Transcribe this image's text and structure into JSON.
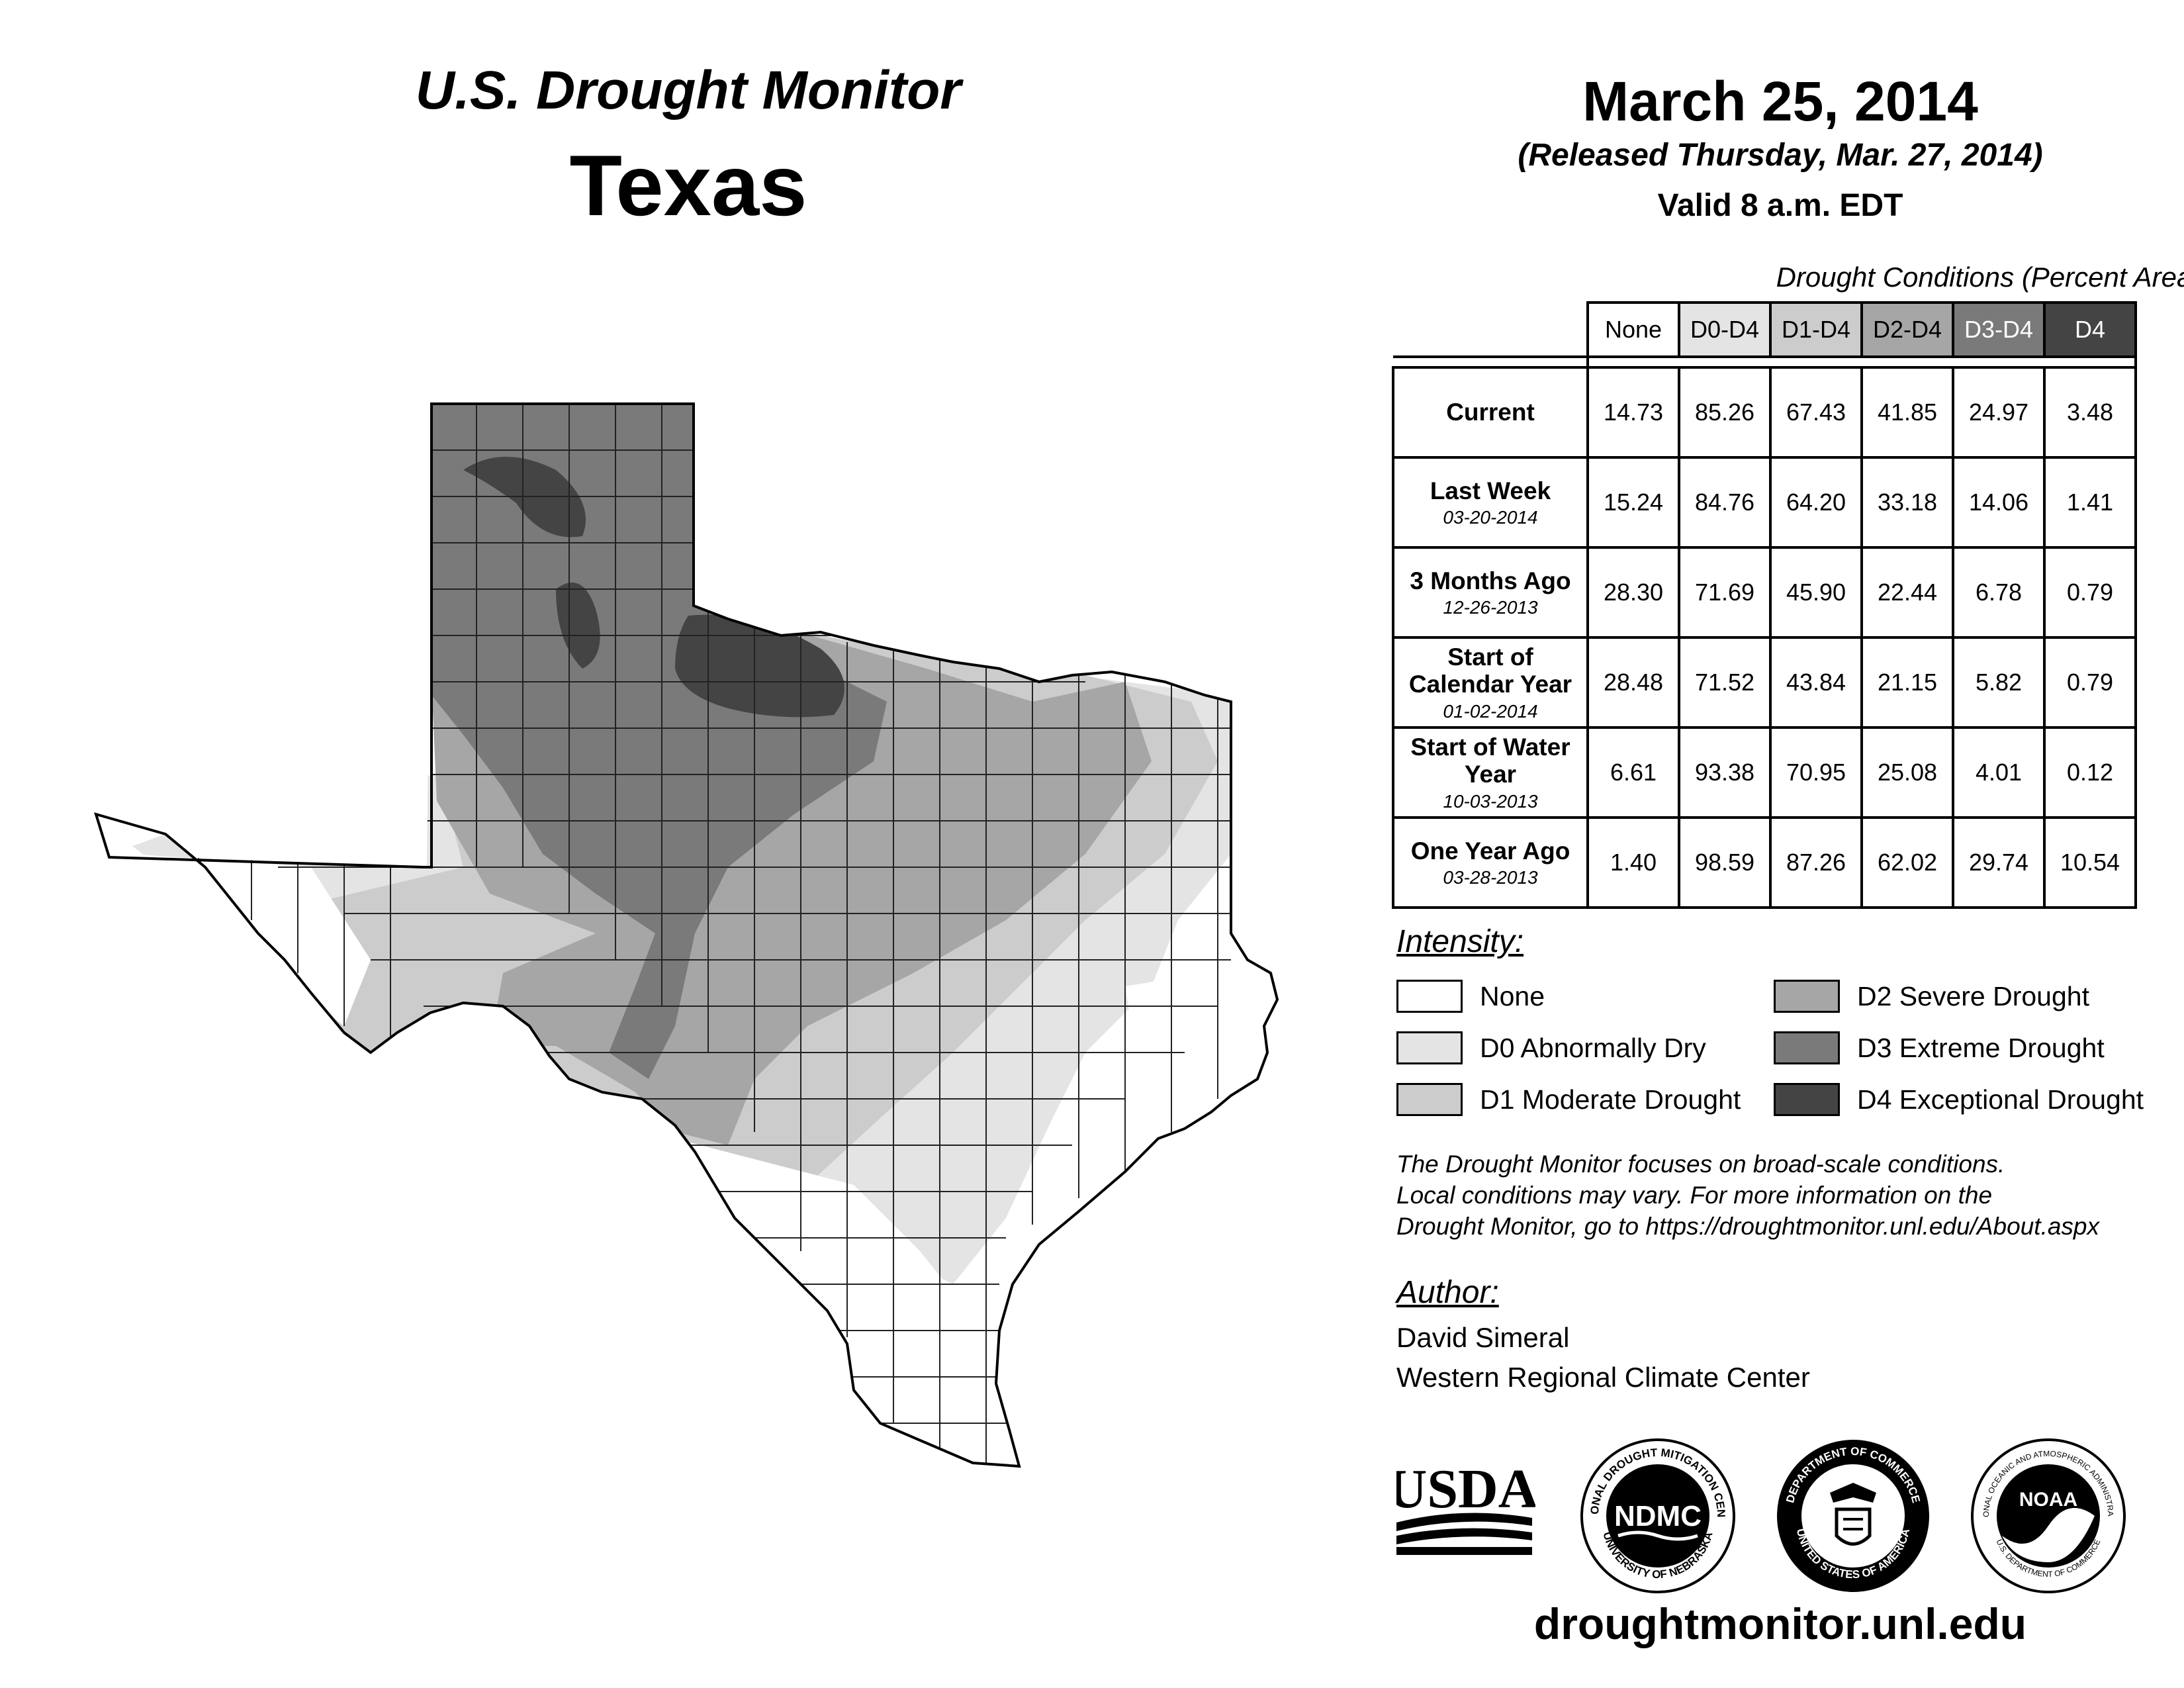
{
  "header": {
    "title": "U.S. Drought Monitor",
    "region": "Texas",
    "date": "March 25, 2014",
    "released": "(Released Thursday, Mar. 27, 2014)",
    "valid": "Valid 8 a.m. EDT"
  },
  "table": {
    "caption": "Drought Conditions (Percent Area)",
    "columns": [
      "None",
      "D0-D4",
      "D1-D4",
      "D2-D4",
      "D3-D4",
      "D4"
    ],
    "header_colors": [
      "#ffffff",
      "#e4e4e4",
      "#cccccc",
      "#a6a6a6",
      "#7a7a7a",
      "#444444"
    ],
    "rows": [
      {
        "label": "Current",
        "date": "",
        "values": [
          "14.73",
          "85.26",
          "67.43",
          "41.85",
          "24.97",
          "3.48"
        ]
      },
      {
        "label": "Last Week",
        "date": "03-20-2014",
        "values": [
          "15.24",
          "84.76",
          "64.20",
          "33.18",
          "14.06",
          "1.41"
        ]
      },
      {
        "label": "3 Months Ago",
        "date": "12-26-2013",
        "values": [
          "28.30",
          "71.69",
          "45.90",
          "22.44",
          "6.78",
          "0.79"
        ]
      },
      {
        "label": "Start of Calendar Year",
        "date": "01-02-2014",
        "values": [
          "28.48",
          "71.52",
          "43.84",
          "21.15",
          "5.82",
          "0.79"
        ]
      },
      {
        "label": "Start of Water Year",
        "date": "10-03-2013",
        "values": [
          "6.61",
          "93.38",
          "70.95",
          "25.08",
          "4.01",
          "0.12"
        ]
      },
      {
        "label": "One Year Ago",
        "date": "03-28-2013",
        "values": [
          "1.40",
          "98.59",
          "87.26",
          "62.02",
          "29.74",
          "10.54"
        ]
      }
    ]
  },
  "legend": {
    "title": "Intensity:",
    "items": [
      {
        "label": "None",
        "color": "#ffffff"
      },
      {
        "label": "D0 Abnormally Dry",
        "color": "#e4e4e4"
      },
      {
        "label": "D1 Moderate Drought",
        "color": "#cccccc"
      },
      {
        "label": "D2 Severe Drought",
        "color": "#a6a6a6"
      },
      {
        "label": "D3 Extreme Drought",
        "color": "#7a7a7a"
      },
      {
        "label": "D4 Exceptional Drought",
        "color": "#444444"
      }
    ]
  },
  "note": {
    "line1": "The Drought Monitor focuses on broad-scale conditions.",
    "line2": "Local conditions may vary. For more information on the",
    "line3": "Drought Monitor, go to https://droughtmonitor.unl.edu/About.aspx"
  },
  "author": {
    "title": "Author:",
    "name": "David Simeral",
    "org": "Western Regional Climate Center"
  },
  "logos": {
    "usda": "USDA",
    "ndmc": "NDMC",
    "ndmc_ring_top": "NATIONAL DROUGHT MITIGATION CENTER",
    "ndmc_ring_bottom": "UNIVERSITY OF NEBRASKA",
    "doc_ring_top": "DEPARTMENT OF COMMERCE",
    "doc_ring_bottom": "UNITED STATES OF AMERICA",
    "noaa": "NOAA",
    "noaa_ring_top": "NATIONAL OCEANIC AND ATMOSPHERIC ADMINISTRATION",
    "noaa_ring_bottom": "U.S. DEPARTMENT OF COMMERCE"
  },
  "footer_url": "droughtmonitor.unl.edu"
}
